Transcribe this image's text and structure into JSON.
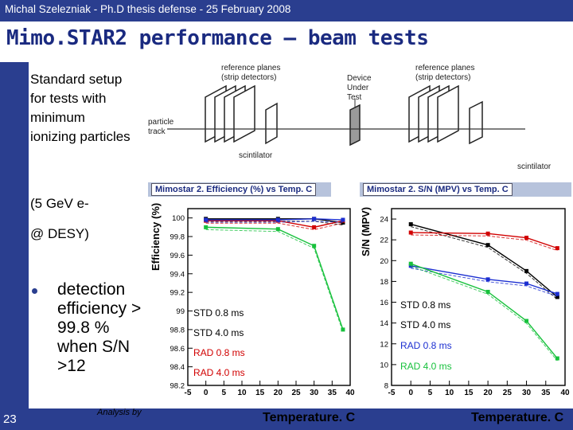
{
  "header": {
    "text": "Michal Szelezniak  -  Ph.D thesis defense  -  25 February 2008"
  },
  "title": "Mimo.STAR2 performance – beam tests",
  "left": {
    "setup": "Standard setup for tests with minimum ionizing particles",
    "energy": "(5 GeV e-",
    "location": "@ DESY)",
    "detection": "detection efficiency > 99.8 % when S/N >12"
  },
  "footer": {
    "slide_number": "23",
    "analysis": "Analysis by"
  },
  "diagram": {
    "ref_planes_left": [
      "reference planes",
      "(strip detectors)"
    ],
    "ref_planes_right": [
      "reference planes",
      "(strip detectors)"
    ],
    "dut": [
      "Device",
      "Under",
      "Test"
    ],
    "particle": [
      "particle",
      "track"
    ],
    "scint_left": "scintilator",
    "scint_right": "scintilator"
  },
  "colors": {
    "accent": "#2a3e8f",
    "std08": "#000000",
    "std40": "#d10000",
    "rad08": "#1c2fd1",
    "rad40": "#17c13c"
  },
  "chart_data": [
    {
      "type": "line",
      "title": "Mimostar 2. Efficiency (%) vs Temp. C",
      "xlabel": "Temperature. C",
      "ylabel": "Efficiency (%)",
      "x": [
        -5,
        0,
        5,
        10,
        15,
        20,
        25,
        30,
        35,
        40
      ],
      "xlim": [
        -5,
        40
      ],
      "ylim": [
        98.2,
        100.1
      ],
      "yticks": [
        98.2,
        98.4,
        98.6,
        98.8,
        99,
        99.2,
        99.4,
        99.6,
        99.8,
        100
      ],
      "ytick_labels": [
        "98.2",
        "98.4",
        "98.6",
        "98.8",
        "99",
        "99.2",
        "99.4",
        "99.6",
        "99.8",
        "100"
      ],
      "xtick_labels": [
        "-5",
        "0",
        "5",
        "10",
        "15",
        "20",
        "25",
        "30",
        "35",
        "40"
      ],
      "series": [
        {
          "name": "STD 0.8 ms",
          "color": "#000000",
          "points": [
            [
              0,
              99.99
            ],
            [
              20,
              99.99
            ],
            [
              30,
              99.99
            ],
            [
              38,
              99.95
            ]
          ]
        },
        {
          "name": "STD 4.0 ms",
          "color": "#d10000",
          "points": [
            [
              0,
              99.97
            ],
            [
              20,
              99.97
            ],
            [
              30,
              99.9
            ],
            [
              38,
              99.97
            ]
          ]
        },
        {
          "name": "RAD 0.8 ms",
          "color": "#1c2fd1",
          "points": [
            [
              0,
              99.98
            ],
            [
              20,
              99.98
            ],
            [
              30,
              99.99
            ],
            [
              38,
              99.98
            ]
          ]
        },
        {
          "name": "RAD 4.0 ms",
          "color": "#17c13c",
          "points": [
            [
              0,
              99.9
            ],
            [
              20,
              99.88
            ],
            [
              30,
              99.7
            ],
            [
              38,
              98.8
            ]
          ]
        }
      ]
    },
    {
      "type": "line",
      "title": "Mimostar 2. S/N (MPV) vs Temp. C",
      "xlabel": "Temperature. C",
      "ylabel": "S/N (MPV)",
      "x": [
        -5,
        0,
        5,
        10,
        15,
        20,
        25,
        30,
        35,
        40
      ],
      "xlim": [
        -5,
        40
      ],
      "ylim": [
        8,
        25
      ],
      "yticks": [
        8,
        10,
        12,
        14,
        16,
        18,
        20,
        22,
        24
      ],
      "ytick_labels": [
        "8",
        "10",
        "12",
        "14",
        "16",
        "18",
        "20",
        "22",
        "24"
      ],
      "xtick_labels": [
        "-5",
        "0",
        "5",
        "10",
        "15",
        "20",
        "25",
        "30",
        "35",
        "40"
      ],
      "series": [
        {
          "name": "STD 0.8 ms",
          "color": "#000000",
          "points": [
            [
              0,
              23.5
            ],
            [
              20,
              21.5
            ],
            [
              30,
              19
            ],
            [
              38,
              16.5
            ]
          ]
        },
        {
          "name": "STD 4.0 ms",
          "color": "#d10000",
          "points": [
            [
              0,
              22.7
            ],
            [
              20,
              22.6
            ],
            [
              30,
              22.2
            ],
            [
              38,
              21.2
            ]
          ]
        },
        {
          "name": "RAD 0.8 ms",
          "color": "#1c2fd1",
          "points": [
            [
              0,
              19.5
            ],
            [
              20,
              18.2
            ],
            [
              30,
              17.8
            ],
            [
              38,
              16.8
            ]
          ]
        },
        {
          "name": "RAD 4.0 ms",
          "color": "#17c13c",
          "points": [
            [
              0,
              19.7
            ],
            [
              20,
              17
            ],
            [
              30,
              14.2
            ],
            [
              38,
              10.6
            ]
          ]
        }
      ]
    }
  ]
}
